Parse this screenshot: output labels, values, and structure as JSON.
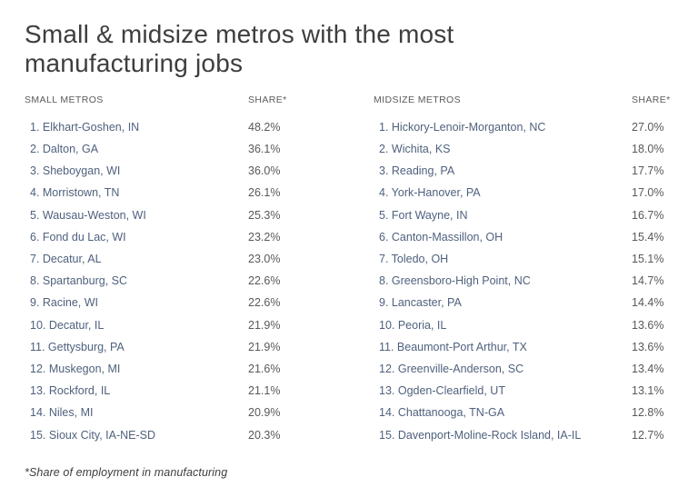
{
  "title": "Small & midsize metros with the most manufacturing jobs",
  "footnote": "*Share of employment in manufacturing",
  "small_metros": {
    "col_header": "SMALL METROS",
    "share_header": "SHARE*",
    "rows": [
      {
        "label": "1. Elkhart-Goshen, IN",
        "share": "48.2%"
      },
      {
        "label": "2. Dalton, GA",
        "share": "36.1%"
      },
      {
        "label": "3. Sheboygan, WI",
        "share": "36.0%"
      },
      {
        "label": "4. Morristown, TN",
        "share": "26.1%"
      },
      {
        "label": "5. Wausau-Weston, WI",
        "share": "25.3%"
      },
      {
        "label": "6. Fond du Lac, WI",
        "share": "23.2%"
      },
      {
        "label": "7. Decatur, AL",
        "share": "23.0%"
      },
      {
        "label": "8. Spartanburg, SC",
        "share": "22.6%"
      },
      {
        "label": "9. Racine, WI",
        "share": "22.6%"
      },
      {
        "label": "10. Decatur, IL",
        "share": "21.9%"
      },
      {
        "label": "11. Gettysburg, PA",
        "share": "21.9%"
      },
      {
        "label": "12. Muskegon, MI",
        "share": "21.6%"
      },
      {
        "label": "13. Rockford, IL",
        "share": "21.1%"
      },
      {
        "label": "14. Niles, MI",
        "share": "20.9%"
      },
      {
        "label": "15. Sioux City, IA-NE-SD",
        "share": "20.3%"
      }
    ]
  },
  "midsize_metros": {
    "col_header": "MIDSIZE METROS",
    "share_header": "SHARE*",
    "rows": [
      {
        "label": "1. Hickory-Lenoir-Morganton, NC",
        "share": "27.0%"
      },
      {
        "label": "2. Wichita, KS",
        "share": "18.0%"
      },
      {
        "label": "3. Reading, PA",
        "share": "17.7%"
      },
      {
        "label": "4. York-Hanover, PA",
        "share": "17.0%"
      },
      {
        "label": "5. Fort Wayne, IN",
        "share": "16.7%"
      },
      {
        "label": "6. Canton-Massillon, OH",
        "share": "15.4%"
      },
      {
        "label": "7. Toledo, OH",
        "share": "15.1%"
      },
      {
        "label": "8. Greensboro-High Point, NC",
        "share": "14.7%"
      },
      {
        "label": "9. Lancaster, PA",
        "share": "14.4%"
      },
      {
        "label": "10. Peoria, IL",
        "share": "13.6%"
      },
      {
        "label": "11. Beaumont-Port Arthur, TX",
        "share": "13.6%"
      },
      {
        "label": "12. Greenville-Anderson, SC",
        "share": "13.4%"
      },
      {
        "label": "13. Ogden-Clearfield, UT",
        "share": "13.1%"
      },
      {
        "label": "14. Chattanooga, TN-GA",
        "share": "12.8%"
      },
      {
        "label": "15. Davenport-Moline-Rock Island, IA-IL",
        "share": "12.7%"
      }
    ]
  },
  "colors": {
    "title_text": "#3e3e40",
    "column_header_text": "#5b5b5d",
    "metro_name_text": "#4f617d",
    "share_value_text": "#58595b",
    "background": "#ffffff"
  },
  "chart_data": {
    "type": "table",
    "title": "Small & midsize metros with the most manufacturing jobs",
    "note": "*Share of employment in manufacturing",
    "tables": [
      {
        "name": "SMALL METROS",
        "columns": [
          "Metro",
          "SHARE*"
        ],
        "unit": "percent share of employment in manufacturing",
        "rows": [
          {
            "rank": 1,
            "metro": "Elkhart-Goshen, IN",
            "share_pct": 48.2
          },
          {
            "rank": 2,
            "metro": "Dalton, GA",
            "share_pct": 36.1
          },
          {
            "rank": 3,
            "metro": "Sheboygan, WI",
            "share_pct": 36.0
          },
          {
            "rank": 4,
            "metro": "Morristown, TN",
            "share_pct": 26.1
          },
          {
            "rank": 5,
            "metro": "Wausau-Weston, WI",
            "share_pct": 25.3
          },
          {
            "rank": 6,
            "metro": "Fond du Lac, WI",
            "share_pct": 23.2
          },
          {
            "rank": 7,
            "metro": "Decatur, AL",
            "share_pct": 23.0
          },
          {
            "rank": 8,
            "metro": "Spartanburg, SC",
            "share_pct": 22.6
          },
          {
            "rank": 9,
            "metro": "Racine, WI",
            "share_pct": 22.6
          },
          {
            "rank": 10,
            "metro": "Decatur, IL",
            "share_pct": 21.9
          },
          {
            "rank": 11,
            "metro": "Gettysburg, PA",
            "share_pct": 21.9
          },
          {
            "rank": 12,
            "metro": "Muskegon, MI",
            "share_pct": 21.6
          },
          {
            "rank": 13,
            "metro": "Rockford, IL",
            "share_pct": 21.1
          },
          {
            "rank": 14,
            "metro": "Niles, MI",
            "share_pct": 20.9
          },
          {
            "rank": 15,
            "metro": "Sioux City, IA-NE-SD",
            "share_pct": 20.3
          }
        ]
      },
      {
        "name": "MIDSIZE METROS",
        "columns": [
          "Metro",
          "SHARE*"
        ],
        "unit": "percent share of employment in manufacturing",
        "rows": [
          {
            "rank": 1,
            "metro": "Hickory-Lenoir-Morganton, NC",
            "share_pct": 27.0
          },
          {
            "rank": 2,
            "metro": "Wichita, KS",
            "share_pct": 18.0
          },
          {
            "rank": 3,
            "metro": "Reading, PA",
            "share_pct": 17.7
          },
          {
            "rank": 4,
            "metro": "York-Hanover, PA",
            "share_pct": 17.0
          },
          {
            "rank": 5,
            "metro": "Fort Wayne, IN",
            "share_pct": 16.7
          },
          {
            "rank": 6,
            "metro": "Canton-Massillon, OH",
            "share_pct": 15.4
          },
          {
            "rank": 7,
            "metro": "Toledo, OH",
            "share_pct": 15.1
          },
          {
            "rank": 8,
            "metro": "Greensboro-High Point, NC",
            "share_pct": 14.7
          },
          {
            "rank": 9,
            "metro": "Lancaster, PA",
            "share_pct": 14.4
          },
          {
            "rank": 10,
            "metro": "Peoria, IL",
            "share_pct": 13.6
          },
          {
            "rank": 11,
            "metro": "Beaumont-Port Arthur, TX",
            "share_pct": 13.6
          },
          {
            "rank": 12,
            "metro": "Greenville-Anderson, SC",
            "share_pct": 13.4
          },
          {
            "rank": 13,
            "metro": "Ogden-Clearfield, UT",
            "share_pct": 13.1
          },
          {
            "rank": 14,
            "metro": "Chattanooga, TN-GA",
            "share_pct": 12.8
          },
          {
            "rank": 15,
            "metro": "Davenport-Moline-Rock Island, IA-IL",
            "share_pct": 12.7
          }
        ]
      }
    ]
  }
}
